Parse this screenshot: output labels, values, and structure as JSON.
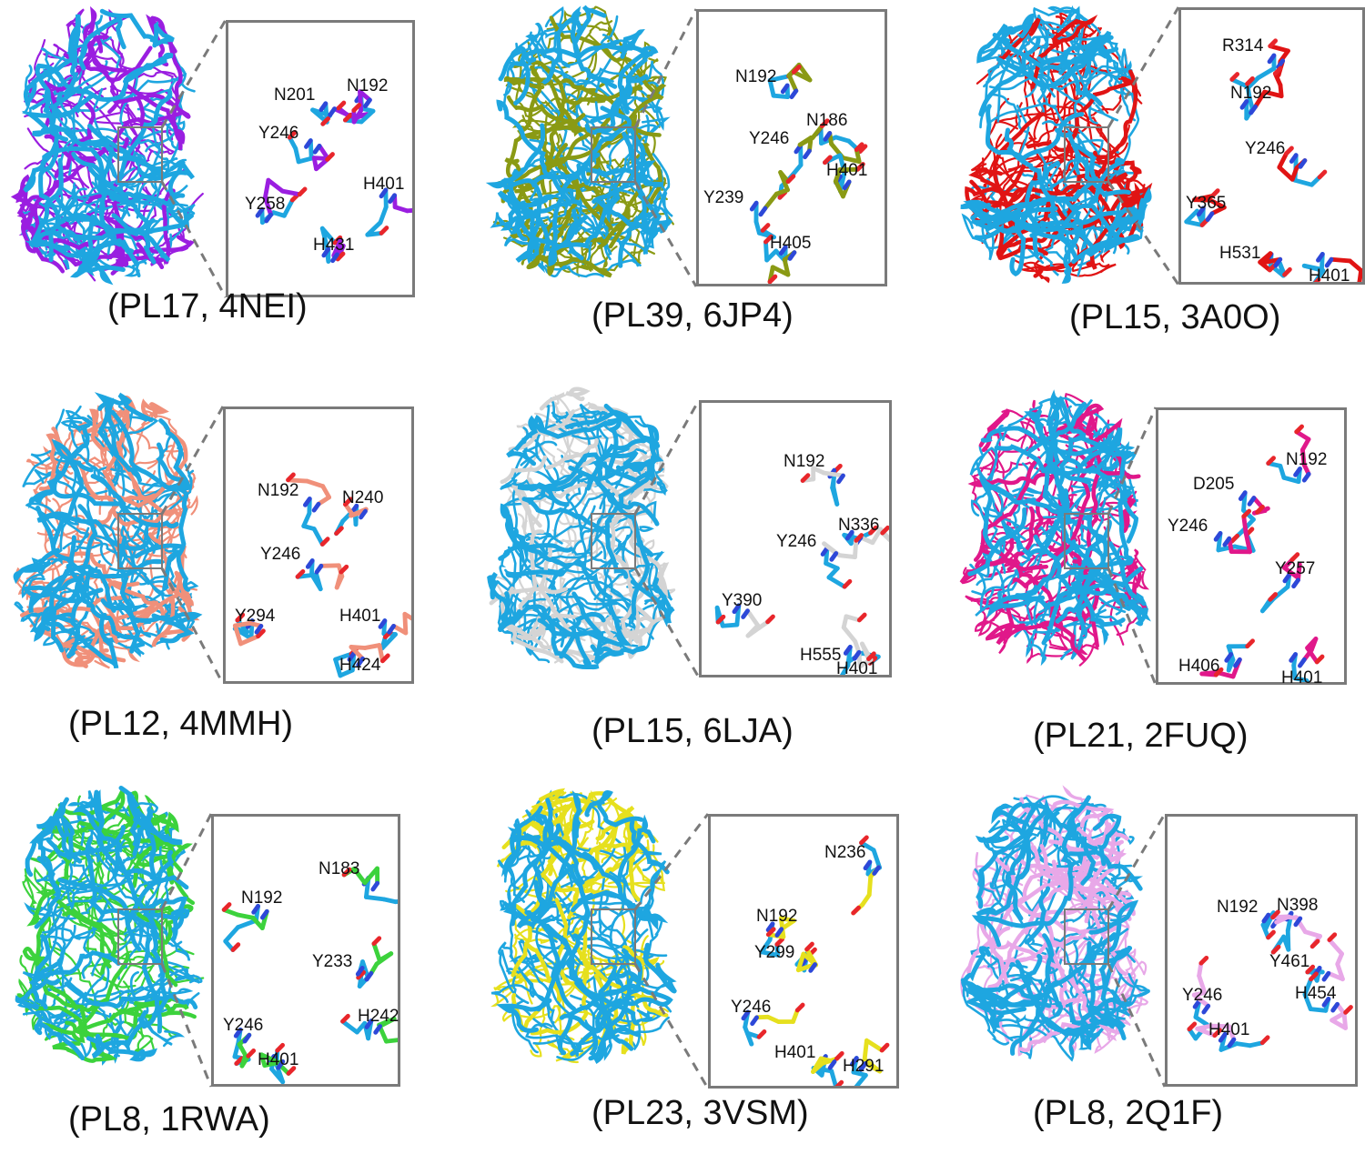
{
  "colors": {
    "reference": "#1ea6e0",
    "frame": "#7a7a7a",
    "oxygen": "#e8262b",
    "nitrogen": "#2d48d8"
  },
  "panels": [
    {
      "caption": "(PL17, 4NEI)",
      "color": "#9a1ee0",
      "labels": [
        {
          "text": "N201"
        },
        {
          "text": "N192"
        },
        {
          "text": "Y246"
        },
        {
          "text": "Y258"
        },
        {
          "text": "H401"
        },
        {
          "text": "H431"
        }
      ]
    },
    {
      "caption": "(PL39, 6JP4)",
      "color": "#8a9a14",
      "labels": [
        {
          "text": "N192"
        },
        {
          "text": "N186"
        },
        {
          "text": "Y246"
        },
        {
          "text": "H401"
        },
        {
          "text": "Y239"
        },
        {
          "text": "H405"
        }
      ]
    },
    {
      "caption": "(PL15, 3A0O)",
      "color": "#e01414",
      "labels": [
        {
          "text": "R314"
        },
        {
          "text": "N192"
        },
        {
          "text": "Y246"
        },
        {
          "text": "Y365"
        },
        {
          "text": "H531"
        },
        {
          "text": "H401"
        }
      ]
    },
    {
      "caption": "(PL12, 4MMH)",
      "color": "#f0907a",
      "labels": [
        {
          "text": "N192"
        },
        {
          "text": "N240"
        },
        {
          "text": "Y246"
        },
        {
          "text": "Y294"
        },
        {
          "text": "H401"
        },
        {
          "text": "H424"
        }
      ]
    },
    {
      "caption": "(PL15, 6LJA)",
      "color": "#d4d4d4",
      "labels": [
        {
          "text": "N192"
        },
        {
          "text": "N336"
        },
        {
          "text": "Y246"
        },
        {
          "text": "Y390"
        },
        {
          "text": "H555"
        },
        {
          "text": "H401"
        }
      ]
    },
    {
      "caption": "(PL21, 2FUQ)",
      "color": "#e0188a",
      "labels": [
        {
          "text": "D205"
        },
        {
          "text": "N192"
        },
        {
          "text": "Y246"
        },
        {
          "text": "Y257"
        },
        {
          "text": "H406"
        },
        {
          "text": "H401"
        }
      ]
    },
    {
      "caption": "(PL8, 1RWA)",
      "color": "#3cd23c",
      "labels": [
        {
          "text": "N183"
        },
        {
          "text": "N192"
        },
        {
          "text": "Y233"
        },
        {
          "text": "Y246"
        },
        {
          "text": "H242"
        },
        {
          "text": "H401"
        }
      ]
    },
    {
      "caption": "(PL23, 3VSM)",
      "color": "#e6e01e",
      "labels": [
        {
          "text": "N236"
        },
        {
          "text": "N192"
        },
        {
          "text": "Y299"
        },
        {
          "text": "Y246"
        },
        {
          "text": "H401"
        },
        {
          "text": "H291"
        }
      ]
    },
    {
      "caption": "(PL8, 2Q1F)",
      "color": "#e8a8e8",
      "labels": [
        {
          "text": "N192"
        },
        {
          "text": "N398"
        },
        {
          "text": "Y461"
        },
        {
          "text": "Y246"
        },
        {
          "text": "H454"
        },
        {
          "text": "H401"
        }
      ]
    }
  ]
}
